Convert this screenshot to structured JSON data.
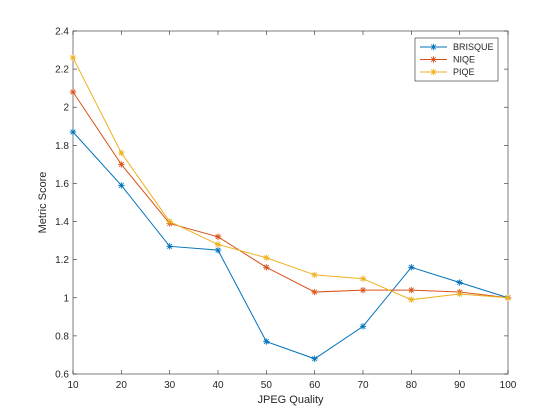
{
  "chart_data": {
    "type": "line",
    "xlabel": "JPEG Quality",
    "ylabel": "Metric Score",
    "xlim": [
      10,
      100
    ],
    "ylim": [
      0.6,
      2.4
    ],
    "x": [
      10,
      20,
      30,
      40,
      50,
      60,
      70,
      80,
      90,
      100
    ],
    "xticks": [
      "10",
      "20",
      "30",
      "40",
      "50",
      "60",
      "70",
      "80",
      "90",
      "100"
    ],
    "yticks": [
      "0.6",
      "0.8",
      "1",
      "1.2",
      "1.4",
      "1.6",
      "1.8",
      "2",
      "2.2",
      "2.4"
    ],
    "grid": false,
    "legend_position": "top-right",
    "marker": "asterisk",
    "series": [
      {
        "name": "BRISQUE",
        "color": "#0072BD",
        "values": [
          1.87,
          1.59,
          1.27,
          1.25,
          0.77,
          0.68,
          0.85,
          1.16,
          1.08,
          1.0
        ]
      },
      {
        "name": "NIQE",
        "color": "#D95319",
        "values": [
          2.08,
          1.7,
          1.39,
          1.32,
          1.16,
          1.03,
          1.04,
          1.04,
          1.03,
          1.0
        ]
      },
      {
        "name": "PIQE",
        "color": "#EDB120",
        "values": [
          2.26,
          1.76,
          1.4,
          1.28,
          1.21,
          1.12,
          1.1,
          0.99,
          1.02,
          1.0
        ]
      }
    ]
  }
}
